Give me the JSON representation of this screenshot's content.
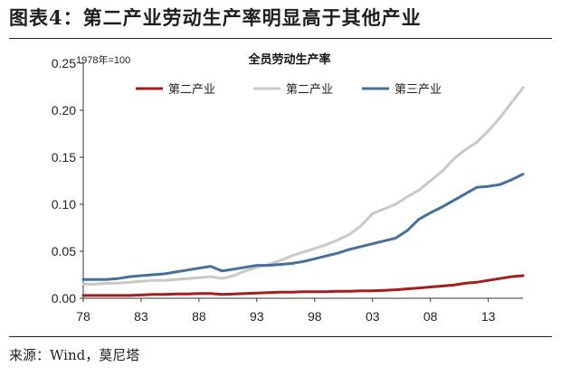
{
  "figure": {
    "title": "图表4：第二产业劳动生产率明显高于其他产业",
    "source": "来源：Wind，莫尼塔"
  },
  "chart_data": {
    "type": "line",
    "title": "全员劳动生产率",
    "unit_note": "1978年=100",
    "legend_position": "top",
    "grid": false,
    "xlim": [
      1978,
      2016
    ],
    "ylim": [
      0,
      0.25
    ],
    "y_ticks": [
      0.0,
      0.05,
      0.1,
      0.15,
      0.2,
      0.25
    ],
    "y_tick_labels": [
      "0.00",
      "0.05",
      "0.10",
      "0.15",
      "0.20",
      "0.25"
    ],
    "x_ticks": [
      1978,
      1983,
      1988,
      1993,
      1998,
      2003,
      2008,
      2013
    ],
    "x_tick_labels": [
      "78",
      "83",
      "88",
      "93",
      "98",
      "03",
      "08",
      "13"
    ],
    "series": [
      {
        "name": "第二产业",
        "color": "#a51d1d",
        "x": [
          1978,
          1979,
          1980,
          1981,
          1982,
          1983,
          1984,
          1985,
          1986,
          1987,
          1988,
          1989,
          1990,
          1991,
          1992,
          1993,
          1994,
          1995,
          1996,
          1997,
          1998,
          1999,
          2000,
          2001,
          2002,
          2003,
          2004,
          2005,
          2006,
          2007,
          2008,
          2009,
          2010,
          2011,
          2012,
          2013,
          2014,
          2015,
          2016
        ],
        "y": [
          0.003,
          0.003,
          0.003,
          0.003,
          0.003,
          0.0035,
          0.004,
          0.004,
          0.0045,
          0.0045,
          0.005,
          0.005,
          0.004,
          0.0045,
          0.005,
          0.0055,
          0.006,
          0.0065,
          0.0065,
          0.007,
          0.007,
          0.007,
          0.0075,
          0.0075,
          0.008,
          0.008,
          0.0085,
          0.009,
          0.01,
          0.011,
          0.012,
          0.013,
          0.014,
          0.016,
          0.017,
          0.019,
          0.021,
          0.023,
          0.024
        ]
      },
      {
        "name": "第二产业",
        "color": "#c8c8c8",
        "x": [
          1978,
          1979,
          1980,
          1981,
          1982,
          1983,
          1984,
          1985,
          1986,
          1987,
          1988,
          1989,
          1990,
          1991,
          1992,
          1993,
          1994,
          1995,
          1996,
          1997,
          1998,
          1999,
          2000,
          2001,
          2002,
          2003,
          2004,
          2005,
          2006,
          2007,
          2008,
          2009,
          2010,
          2011,
          2012,
          2013,
          2014,
          2015,
          2016
        ],
        "y": [
          0.015,
          0.015,
          0.016,
          0.016,
          0.017,
          0.018,
          0.019,
          0.019,
          0.02,
          0.021,
          0.022,
          0.023,
          0.021,
          0.024,
          0.029,
          0.033,
          0.036,
          0.04,
          0.045,
          0.049,
          0.053,
          0.057,
          0.062,
          0.068,
          0.077,
          0.09,
          0.095,
          0.1,
          0.108,
          0.115,
          0.125,
          0.135,
          0.148,
          0.158,
          0.166,
          0.178,
          0.192,
          0.208,
          0.224
        ]
      },
      {
        "name": "第三产业",
        "color": "#46709c",
        "x": [
          1978,
          1979,
          1980,
          1981,
          1982,
          1983,
          1984,
          1985,
          1986,
          1987,
          1988,
          1989,
          1990,
          1991,
          1992,
          1993,
          1994,
          1995,
          1996,
          1997,
          1998,
          1999,
          2000,
          2001,
          2002,
          2003,
          2004,
          2005,
          2006,
          2007,
          2008,
          2009,
          2010,
          2011,
          2012,
          2013,
          2014,
          2015,
          2016
        ],
        "y": [
          0.02,
          0.02,
          0.02,
          0.021,
          0.023,
          0.024,
          0.025,
          0.026,
          0.028,
          0.03,
          0.032,
          0.034,
          0.029,
          0.031,
          0.033,
          0.035,
          0.035,
          0.036,
          0.037,
          0.039,
          0.042,
          0.045,
          0.048,
          0.052,
          0.055,
          0.058,
          0.061,
          0.064,
          0.072,
          0.084,
          0.091,
          0.097,
          0.104,
          0.111,
          0.118,
          0.119,
          0.121,
          0.126,
          0.132
        ]
      }
    ]
  }
}
